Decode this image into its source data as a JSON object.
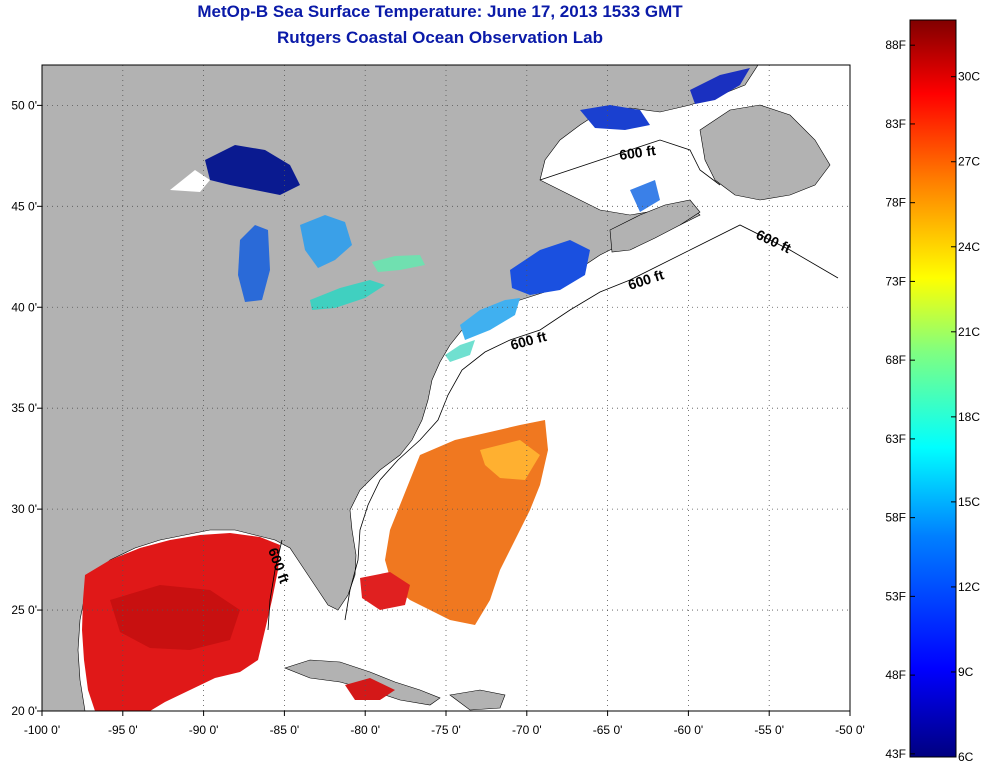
{
  "title_line1": "MetOp-B Sea Surface Temperature:  June 17, 2013 1533 GMT",
  "title_line2": "Rutgers Coastal Ocean Observation Lab",
  "map": {
    "lon_range": [
      -100,
      -50
    ],
    "lat_range": [
      20,
      52
    ],
    "x_ticks": [
      {
        "value": -100,
        "label": "-100 0'"
      },
      {
        "value": -95,
        "label": "-95 0'"
      },
      {
        "value": -90,
        "label": "-90 0'"
      },
      {
        "value": -85,
        "label": "-85 0'"
      },
      {
        "value": -80,
        "label": "-80 0'"
      },
      {
        "value": -75,
        "label": "-75 0'"
      },
      {
        "value": -70,
        "label": "-70 0'"
      },
      {
        "value": -65,
        "label": "-65 0'"
      },
      {
        "value": -60,
        "label": "-60 0'"
      },
      {
        "value": -55,
        "label": "-55 0'"
      },
      {
        "value": -50,
        "label": "-50 0'"
      }
    ],
    "y_ticks": [
      {
        "value": 50,
        "label": "50 0'"
      },
      {
        "value": 45,
        "label": "45 0'"
      },
      {
        "value": 40,
        "label": "40 0'"
      },
      {
        "value": 35,
        "label": "35 0'"
      },
      {
        "value": 30,
        "label": "30 0'"
      },
      {
        "value": 25,
        "label": "25 0'"
      },
      {
        "value": 20,
        "label": "20 0'"
      }
    ],
    "contour_labels": [
      "600 ft",
      "600 ft",
      "600 ft",
      "600 ft",
      "600 ft"
    ],
    "colors": {
      "land": "#b2b2b2",
      "ocean_no_data": "#ffffff",
      "gridline": "#555555"
    }
  },
  "colorbar": {
    "min_c": 6,
    "max_c": 32,
    "fahrenheit_labels": [
      "88F",
      "83F",
      "78F",
      "73F",
      "68F",
      "63F",
      "58F",
      "53F",
      "48F",
      "43F"
    ],
    "celsius_labels": [
      "30C",
      "27C",
      "24C",
      "21C",
      "18C",
      "15C",
      "12C",
      "9C",
      "6C"
    ],
    "colors": [
      "#000080",
      "#0000ff",
      "#0080ff",
      "#00ffff",
      "#80ff80",
      "#ffff00",
      "#ff8000",
      "#ff0000",
      "#800000"
    ]
  }
}
